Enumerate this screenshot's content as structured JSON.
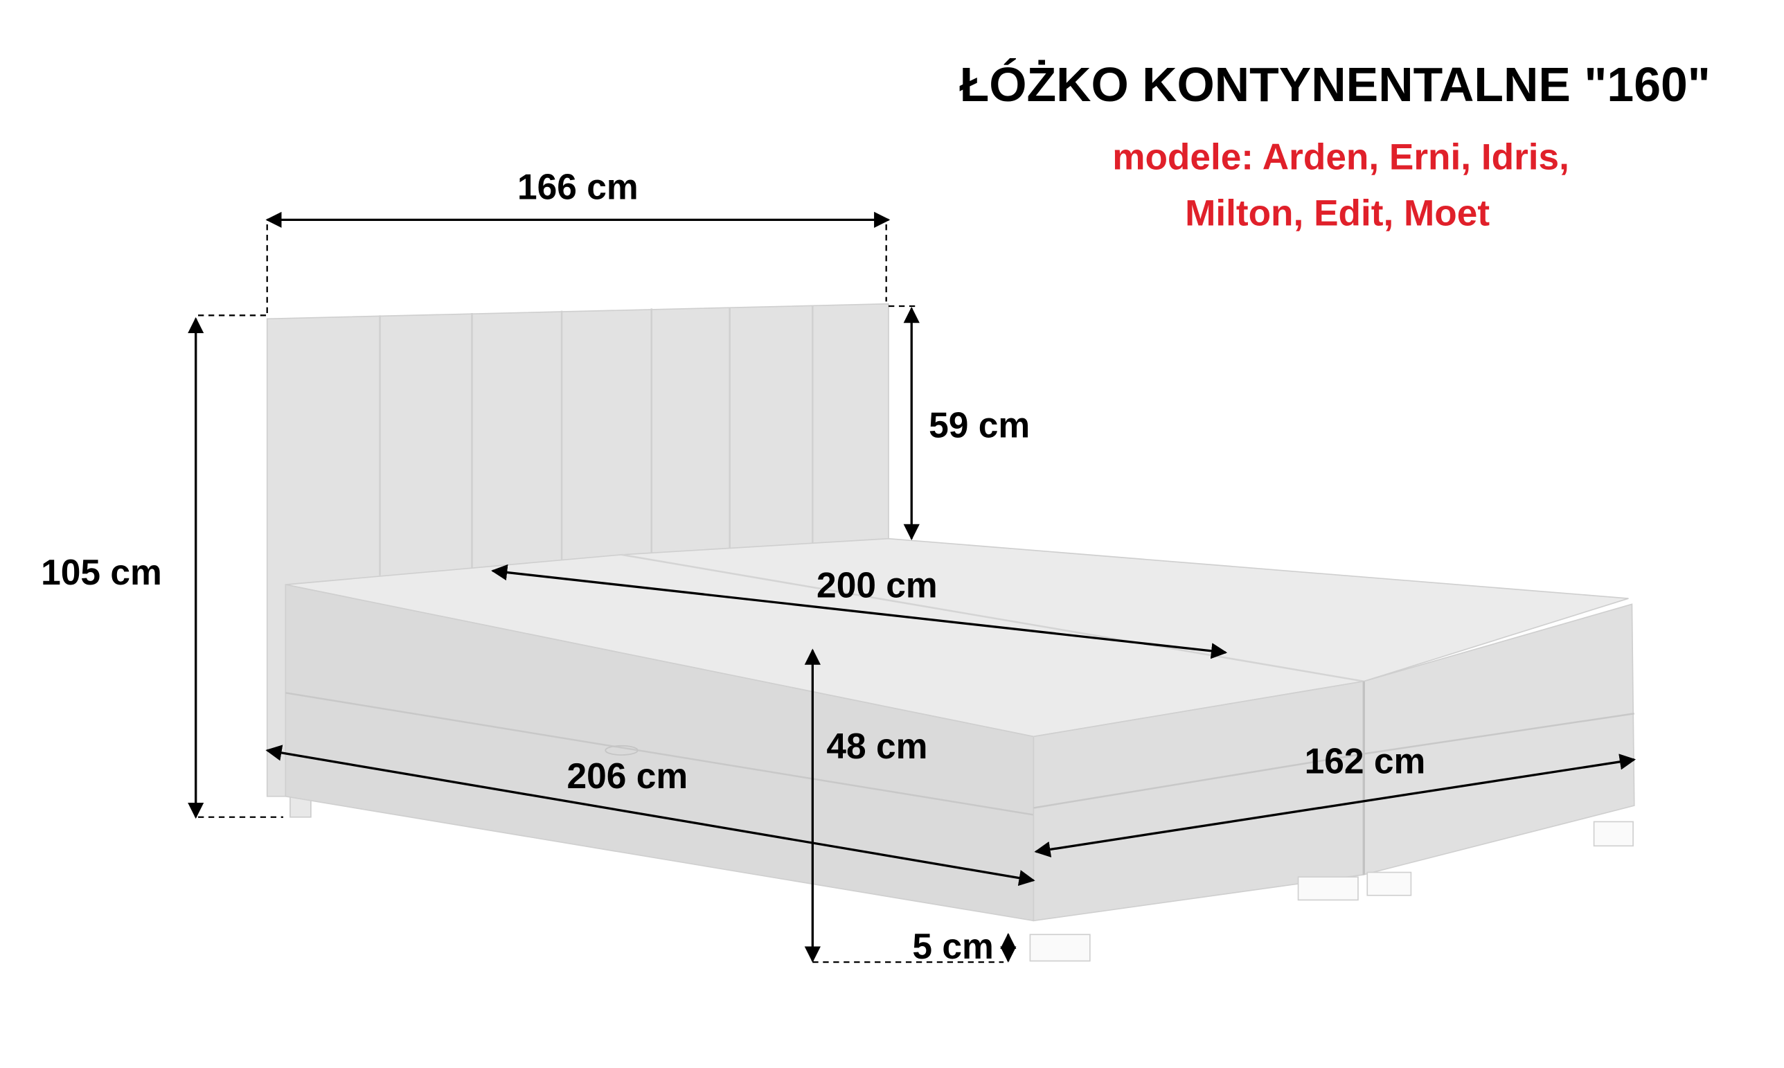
{
  "title": "ŁÓŻKO KONTYNENTALNE \"160\"",
  "models": {
    "line1": "modele: Arden, Erni, Idris,",
    "line2": "Milton, Edit, Moet"
  },
  "dimensions": {
    "width_total": "166 cm",
    "headboard_height": "59 cm",
    "total_height": "105 cm",
    "mattress_length": "200 cm",
    "bed_height": "48 cm",
    "total_length": "206 cm",
    "box_width": "162 cm",
    "leg_height": "5 cm"
  },
  "colors": {
    "title": "#000000",
    "models": "#e0202a",
    "headboard": "#e2e2e2",
    "top": "#ebebeb",
    "side": "#dadada"
  }
}
